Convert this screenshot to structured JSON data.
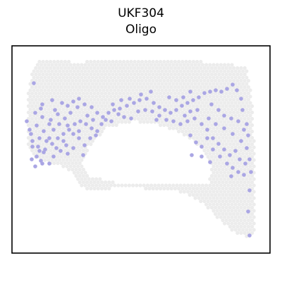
{
  "chart_data": {
    "type": "scatter",
    "title": "UKF304",
    "subtitle": "Oligo",
    "xlabel": "",
    "ylabel": "",
    "axes_ticks": false,
    "grid": false,
    "legend": "none",
    "colors": {
      "background_spots": "#ececec",
      "highlight_spots": "#aaa6e4",
      "frame": "#000000"
    },
    "tissue_polygon": [
      [
        50,
        88
      ],
      [
        58,
        84
      ],
      [
        80,
        86
      ],
      [
        110,
        88
      ],
      [
        150,
        86
      ],
      [
        200,
        86
      ],
      [
        250,
        86
      ],
      [
        300,
        88
      ],
      [
        330,
        92
      ],
      [
        348,
        96
      ],
      [
        354,
        110
      ],
      [
        358,
        150
      ],
      [
        360,
        190
      ],
      [
        362,
        230
      ],
      [
        362,
        280
      ],
      [
        362,
        330
      ],
      [
        350,
        336
      ],
      [
        335,
        332
      ],
      [
        318,
        318
      ],
      [
        300,
        300
      ],
      [
        284,
        286
      ],
      [
        266,
        276
      ],
      [
        240,
        268
      ],
      [
        210,
        268
      ],
      [
        180,
        266
      ],
      [
        150,
        268
      ],
      [
        124,
        272
      ],
      [
        112,
        262
      ],
      [
        100,
        242
      ],
      [
        80,
        234
      ],
      [
        62,
        230
      ],
      [
        44,
        220
      ],
      [
        38,
        196
      ],
      [
        38,
        160
      ],
      [
        40,
        130
      ],
      [
        44,
        105
      ]
    ],
    "tissue_hole": [
      [
        125,
        210
      ],
      [
        150,
        182
      ],
      [
        190,
        172
      ],
      [
        230,
        178
      ],
      [
        262,
        192
      ],
      [
        285,
        210
      ],
      [
        300,
        240
      ],
      [
        296,
        262
      ],
      [
        262,
        262
      ],
      [
        225,
        262
      ],
      [
        190,
        262
      ],
      [
        156,
        258
      ],
      [
        128,
        250
      ],
      [
        118,
        232
      ]
    ],
    "series": [
      {
        "name": "",
        "points": [
          [
            38,
            172
          ],
          [
            44,
            190
          ],
          [
            46,
            208
          ],
          [
            45,
            226
          ],
          [
            50,
            236
          ],
          [
            58,
            228
          ],
          [
            64,
            212
          ],
          [
            70,
            196
          ],
          [
            76,
            184
          ],
          [
            84,
            176
          ],
          [
            92,
            168
          ],
          [
            100,
            160
          ],
          [
            110,
            152
          ],
          [
            120,
            148
          ],
          [
            130,
            152
          ],
          [
            138,
            160
          ],
          [
            146,
            166
          ],
          [
            154,
            160
          ],
          [
            162,
            156
          ],
          [
            170,
            154
          ],
          [
            180,
            150
          ],
          [
            190,
            146
          ],
          [
            198,
            142
          ],
          [
            208,
            140
          ],
          [
            218,
            146
          ],
          [
            226,
            152
          ],
          [
            234,
            156
          ],
          [
            242,
            160
          ],
          [
            250,
            156
          ],
          [
            258,
            150
          ],
          [
            266,
            146
          ],
          [
            274,
            142
          ],
          [
            282,
            138
          ],
          [
            290,
            132
          ],
          [
            298,
            130
          ],
          [
            306,
            128
          ],
          [
            314,
            130
          ],
          [
            322,
            126
          ],
          [
            330,
            120
          ],
          [
            336,
            128
          ],
          [
            342,
            140
          ],
          [
            344,
            156
          ],
          [
            350,
            176
          ],
          [
            352,
            192
          ],
          [
            350,
            210
          ],
          [
            354,
            226
          ],
          [
            356,
            244
          ],
          [
            354,
            270
          ],
          [
            352,
            300
          ],
          [
            354,
            334
          ],
          [
            88,
            146
          ],
          [
            96,
            150
          ],
          [
            104,
            144
          ],
          [
            112,
            140
          ],
          [
            74,
            142
          ],
          [
            78,
            156
          ],
          [
            60,
            166
          ],
          [
            52,
            178
          ],
          [
            56,
            196
          ],
          [
            66,
            200
          ],
          [
            74,
            204
          ],
          [
            82,
            196
          ],
          [
            90,
            190
          ],
          [
            98,
            184
          ],
          [
            106,
            176
          ],
          [
            114,
            172
          ],
          [
            122,
            176
          ],
          [
            130,
            182
          ],
          [
            138,
            186
          ],
          [
            118,
            220
          ],
          [
            56,
            214
          ],
          [
            62,
            186
          ],
          [
            72,
            170
          ],
          [
            82,
            162
          ],
          [
            96,
            178
          ],
          [
            104,
            190
          ],
          [
            112,
            196
          ],
          [
            226,
            164
          ],
          [
            236,
            170
          ],
          [
            246,
            172
          ],
          [
            256,
            176
          ],
          [
            266,
            172
          ],
          [
            276,
            168
          ],
          [
            286,
            176
          ],
          [
            294,
            184
          ],
          [
            302,
            196
          ],
          [
            310,
            204
          ],
          [
            318,
            212
          ],
          [
            326,
            220
          ],
          [
            334,
            214
          ],
          [
            342,
            200
          ],
          [
            330,
            190
          ],
          [
            318,
            182
          ],
          [
            306,
            176
          ],
          [
            296,
            168
          ],
          [
            280,
            156
          ],
          [
            270,
            158
          ],
          [
            262,
            164
          ],
          [
            160,
            148
          ],
          [
            172,
            142
          ],
          [
            184,
            140
          ],
          [
            196,
            158
          ],
          [
            206,
            156
          ],
          [
            216,
            158
          ],
          [
            222,
            170
          ],
          [
            200,
            134
          ],
          [
            214,
            130
          ],
          [
            240,
            138
          ],
          [
            250,
            142
          ],
          [
            260,
            138
          ],
          [
            270,
            130
          ],
          [
            48,
            118
          ],
          [
            60,
            148
          ],
          [
            70,
            176
          ],
          [
            80,
            210
          ],
          [
            90,
            200
          ],
          [
            46,
            200
          ],
          [
            52,
            222
          ],
          [
            60,
            232
          ],
          [
            76,
            222
          ],
          [
            86,
            214
          ],
          [
            94,
            206
          ],
          [
            270,
            192
          ],
          [
            278,
            202
          ],
          [
            286,
            208
          ],
          [
            294,
            196
          ],
          [
            302,
            212
          ],
          [
            312,
            222
          ],
          [
            322,
            232
          ],
          [
            330,
            238
          ],
          [
            340,
            226
          ],
          [
            348,
            232
          ],
          [
            346,
            248
          ],
          [
            338,
            244
          ],
          [
            328,
            250
          ],
          [
            300,
            148
          ],
          [
            310,
            156
          ],
          [
            318,
            164
          ],
          [
            328,
            168
          ],
          [
            338,
            172
          ],
          [
            346,
            184
          ],
          [
            272,
            220
          ],
          [
            286,
            222
          ],
          [
            298,
            230
          ],
          [
            120,
            206
          ],
          [
            128,
            196
          ],
          [
            136,
            192
          ],
          [
            144,
            176
          ],
          [
            150,
            170
          ],
          [
            158,
            172
          ],
          [
            168,
            162
          ],
          [
            176,
            166
          ],
          [
            186,
            168
          ],
          [
            124,
            164
          ],
          [
            132,
            170
          ],
          [
            112,
            186
          ],
          [
            104,
            210
          ],
          [
            96,
            218
          ],
          [
            70,
            232
          ],
          [
            62,
            216
          ],
          [
            54,
            208
          ],
          [
            42,
            184
          ],
          [
            50,
            160
          ],
          [
            58,
            154
          ]
        ]
      }
    ]
  }
}
